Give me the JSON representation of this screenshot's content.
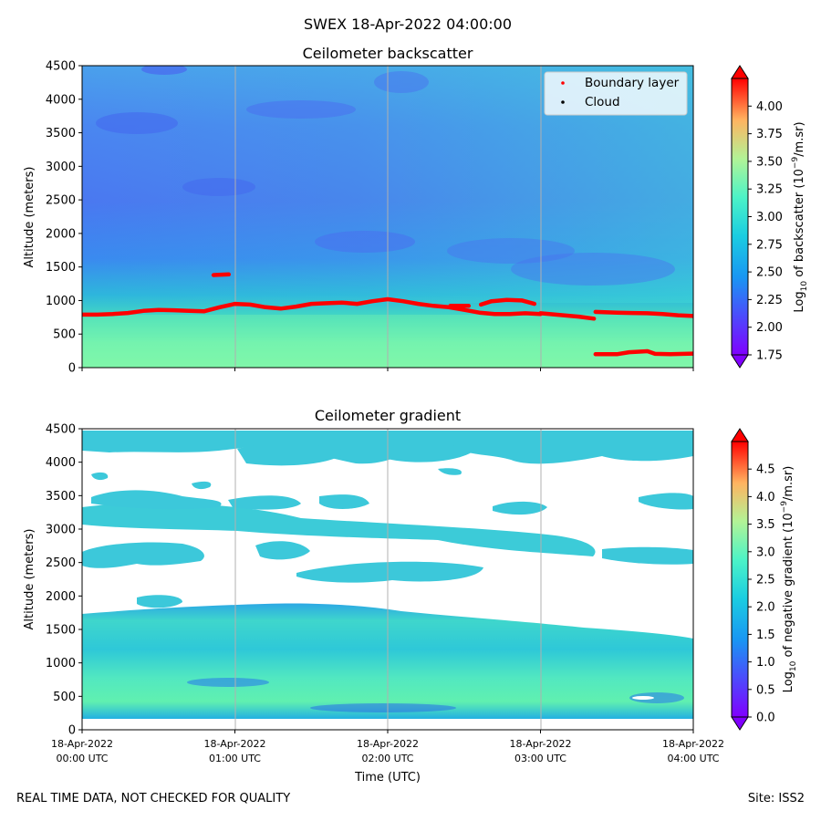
{
  "figure": {
    "suptitle": "SWEX 18-Apr-2022 04:00:00",
    "footer_left": "REAL TIME DATA, NOT CHECKED FOR QUALITY",
    "footer_right": "Site: ISS2",
    "xlabel": "Time (UTC)"
  },
  "x_ticks": [
    {
      "line1": "18-Apr-2022",
      "line2": "00:00 UTC"
    },
    {
      "line1": "18-Apr-2022",
      "line2": "01:00 UTC"
    },
    {
      "line1": "18-Apr-2022",
      "line2": "02:00 UTC"
    },
    {
      "line1": "18-Apr-2022",
      "line2": "03:00 UTC"
    },
    {
      "line1": "18-Apr-2022",
      "line2": "04:00 UTC"
    }
  ],
  "chart_data": [
    {
      "type": "heatmap",
      "title": "Ceilometer backscatter",
      "ylabel": "Altitude (meters)",
      "xlim_hours": [
        0,
        4
      ],
      "ylim": [
        0,
        4500
      ],
      "y_ticks": [
        "0",
        "500",
        "1000",
        "1500",
        "2000",
        "2500",
        "3000",
        "3500",
        "4000",
        "4500"
      ],
      "x_tick_labels_visible": false,
      "colorbar": {
        "label": "Log10 of backscatter (10−9/m.sr)",
        "range": [
          1.75,
          4.25
        ],
        "ticks": [
          "1.75",
          "2.00",
          "2.25",
          "2.50",
          "2.75",
          "3.00",
          "3.25",
          "3.50",
          "3.75",
          "4.00"
        ],
        "extend": "both",
        "colormap": "rainbow"
      },
      "legend": {
        "position": "upper right",
        "entries": [
          {
            "label": "Boundary layer",
            "color": "#ff0000"
          },
          {
            "label": "Cloud",
            "color": "#000000"
          }
        ]
      },
      "boundary_layer_series": [
        {
          "name": "main",
          "hours": [
            0.0,
            0.1,
            0.2,
            0.3,
            0.4,
            0.5,
            0.6,
            0.7,
            0.8,
            0.9,
            1.0,
            1.1,
            1.2,
            1.3,
            1.4,
            1.5,
            1.6,
            1.7,
            1.8,
            1.9,
            2.0,
            2.1,
            2.2,
            2.3,
            2.4,
            2.5,
            2.6,
            2.7,
            2.8,
            2.9,
            3.0
          ],
          "altitudes": [
            790,
            790,
            800,
            815,
            845,
            860,
            855,
            845,
            840,
            900,
            950,
            940,
            900,
            880,
            910,
            950,
            960,
            970,
            950,
            990,
            1020,
            990,
            950,
            920,
            900,
            860,
            820,
            800,
            800,
            810,
            800
          ]
        },
        {
          "name": "segment-1400",
          "hours": [
            0.86,
            0.96
          ],
          "altitudes": [
            1380,
            1390
          ]
        },
        {
          "name": "segment-920",
          "hours": [
            2.41,
            2.53
          ],
          "altitudes": [
            920,
            920
          ]
        },
        {
          "name": "segment-1000",
          "hours": [
            2.61,
            2.68,
            2.78,
            2.88,
            2.96
          ],
          "altitudes": [
            940,
            990,
            1010,
            1000,
            950
          ]
        },
        {
          "name": "segment-descent",
          "hours": [
            3.0,
            3.06,
            3.15,
            3.25,
            3.35
          ],
          "altitudes": [
            810,
            800,
            780,
            760,
            730
          ]
        },
        {
          "name": "segment-800",
          "hours": [
            3.36,
            3.5,
            3.6,
            3.7,
            3.8,
            3.9,
            4.0
          ],
          "altitudes": [
            830,
            820,
            815,
            810,
            800,
            780,
            770
          ]
        },
        {
          "name": "segment-200",
          "hours": [
            3.36,
            3.5,
            3.58,
            3.7,
            3.75,
            3.85,
            4.0
          ],
          "altitudes": [
            200,
            200,
            230,
            245,
            205,
            200,
            210
          ]
        }
      ]
    },
    {
      "type": "heatmap",
      "title": "Ceilometer gradient",
      "ylabel": "Altitude (meters)",
      "xlim_hours": [
        0,
        4
      ],
      "ylim": [
        0,
        4500
      ],
      "y_ticks": [
        "0",
        "500",
        "1000",
        "1500",
        "2000",
        "2500",
        "3000",
        "3500",
        "4000",
        "4500"
      ],
      "x_tick_labels_visible": true,
      "colorbar": {
        "label": "Log10 of negative gradient (10−9/m.sr)",
        "range": [
          0.0,
          5.0
        ],
        "ticks": [
          "0.0",
          "0.5",
          "1.0",
          "1.5",
          "2.0",
          "2.5",
          "3.0",
          "3.5",
          "4.0",
          "4.5"
        ],
        "extend": "both",
        "colormap": "rainbow"
      }
    }
  ]
}
